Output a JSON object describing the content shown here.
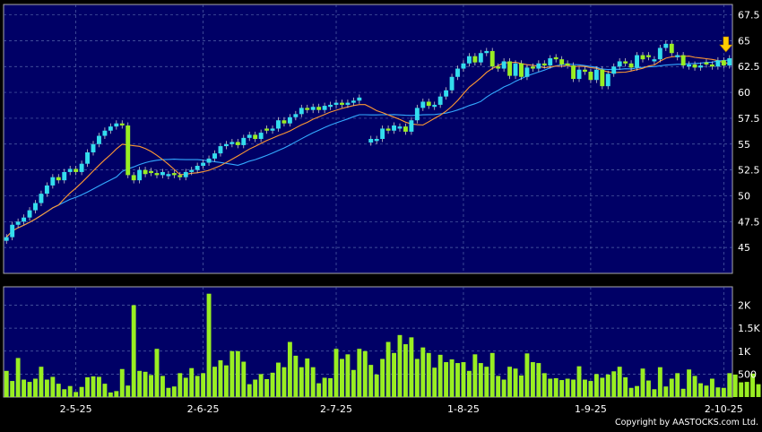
{
  "chart_data": [
    {
      "type": "candlestick",
      "title": "",
      "xlabel": "",
      "ylabel": "",
      "ylim": [
        42.5,
        68.5
      ],
      "yticks": [
        "67.5",
        "65",
        "62.5",
        "60",
        "57.5",
        "55",
        "52.5",
        "50",
        "47.5",
        "45"
      ],
      "ytick_values": [
        67.5,
        65,
        62.5,
        60,
        57.5,
        55,
        52.5,
        50,
        47.5,
        45
      ],
      "xticks": [
        "2-5-25",
        "2-6-25",
        "2-7-25",
        "1-8-25",
        "1-9-25",
        "2-10-25"
      ],
      "xtick_index": [
        12,
        34,
        57,
        79,
        101,
        124
      ],
      "grid": true,
      "up_color": "#33ddee",
      "down_color": "#99ee22",
      "series": [
        {
          "role": "ohlc",
          "close": [
            46.0,
            47.2,
            47.5,
            47.9,
            48.6,
            49.3,
            50.2,
            51.0,
            51.8,
            51.5,
            52.3,
            52.6,
            52.3,
            53.1,
            54.2,
            55.0,
            55.8,
            56.3,
            56.7,
            57.0,
            56.8,
            52.0,
            51.5,
            52.5,
            52.1,
            52.2,
            52.0,
            52.3,
            52.1,
            52.0,
            51.8,
            52.3,
            52.5,
            52.9,
            53.2,
            53.6,
            54.1,
            54.8,
            55.0,
            55.2,
            54.9,
            55.6,
            55.9,
            55.5,
            56.1,
            56.3,
            56.5,
            57.3,
            57.0,
            57.6,
            57.9,
            58.5,
            58.3,
            58.6,
            58.3,
            58.7,
            58.8,
            59.0,
            58.8,
            59.0,
            59.2,
            59.5,
            null,
            55.5,
            55.5,
            56.5,
            56.3,
            56.8,
            56.7,
            56.2,
            57.3,
            58.5,
            59.1,
            58.7,
            58.8,
            59.6,
            60.2,
            61.5,
            62.3,
            62.8,
            63.5,
            62.9,
            63.8,
            64.0,
            62.5,
            62.3,
            63.0,
            61.6,
            62.8,
            61.5,
            62.4,
            62.3,
            62.8,
            62.6,
            63.3,
            63.2,
            62.7,
            62.6,
            61.3,
            62.2,
            62.0,
            61.2,
            62.2,
            60.6,
            61.8,
            62.5,
            63.0,
            62.8,
            62.4,
            63.6,
            63.2,
            63.4,
            63.2,
            64.3,
            64.7,
            63.8,
            63.6,
            62.6,
            62.7,
            62.4,
            62.6,
            62.7,
            62.5,
            63.1,
            62.6,
            63.3
          ]
        },
        {
          "role": "ma-short",
          "color": "#ff9933"
        },
        {
          "role": "ma-long",
          "color": "#33aaff"
        }
      ]
    },
    {
      "type": "bar",
      "title": "",
      "xlabel": "",
      "ylabel": "",
      "ylim": [
        0,
        2400
      ],
      "yticks": [
        "2K",
        "1.5K",
        "1K",
        "500"
      ],
      "ytick_values": [
        2000,
        1500,
        1000,
        500
      ],
      "color": "#99ee22",
      "values": [
        570,
        350,
        850,
        380,
        330,
        400,
        660,
        380,
        440,
        290,
        170,
        240,
        110,
        220,
        430,
        450,
        440,
        290,
        100,
        130,
        610,
        250,
        2000,
        570,
        550,
        480,
        1050,
        460,
        200,
        230,
        520,
        420,
        630,
        460,
        520,
        2250,
        660,
        800,
        690,
        1000,
        1000,
        770,
        280,
        380,
        500,
        390,
        530,
        750,
        650,
        1200,
        900,
        650,
        840,
        650,
        300,
        420,
        410,
        1050,
        830,
        930,
        590,
        1050,
        1000,
        700,
        490,
        830,
        1200,
        960,
        1350,
        1150,
        1300,
        830,
        1080,
        960,
        640,
        920,
        760,
        820,
        740,
        760,
        570,
        930,
        740,
        660,
        960,
        460,
        380,
        660,
        620,
        470,
        950,
        760,
        740,
        520,
        400,
        410,
        370,
        400,
        380,
        670,
        380,
        350,
        500,
        420,
        490,
        560,
        660,
        430,
        200,
        240,
        620,
        360,
        170,
        650,
        230,
        400,
        520,
        180,
        600,
        460,
        300,
        250,
        400,
        210,
        200,
        520,
        490,
        320,
        330,
        510,
        280,
        120,
        110,
        300,
        430
      ]
    }
  ],
  "footer": {
    "copyright": "Copyright by AASTOCKS.com Ltd."
  },
  "marker": {
    "icon": "down-arrow-icon",
    "color": "#ffcc00"
  }
}
